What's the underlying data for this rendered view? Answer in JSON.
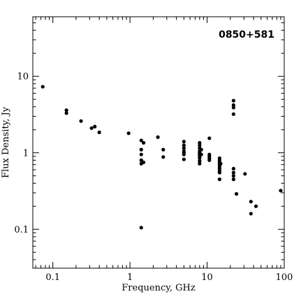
{
  "chart_data": {
    "type": "scatter",
    "title": "0850+581",
    "xlabel": "Frequency, GHz",
    "ylabel": "Flux Density, Jy",
    "x_scale": "log",
    "y_scale": "log",
    "xlim": [
      0.055,
      100
    ],
    "ylim": [
      0.031,
      60
    ],
    "x_ticks": [
      {
        "value": 0.1,
        "label": "0.1"
      },
      {
        "value": 1,
        "label": "1"
      },
      {
        "value": 10,
        "label": "10"
      },
      {
        "value": 100,
        "label": "100"
      }
    ],
    "y_ticks": [
      {
        "value": 0.1,
        "label": "0.1"
      },
      {
        "value": 1,
        "label": "1"
      },
      {
        "value": 10,
        "label": "10"
      }
    ],
    "grid": false,
    "legend": "none",
    "point_color": "#000000",
    "series": [
      {
        "points": [
          [
            0.074,
            7.3
          ],
          [
            0.15,
            3.6
          ],
          [
            0.15,
            3.3
          ],
          [
            0.232,
            2.6
          ],
          [
            0.318,
            2.1
          ],
          [
            0.35,
            2.2
          ],
          [
            0.4,
            1.85
          ],
          [
            0.96,
            1.8
          ],
          [
            1.4,
            1.45
          ],
          [
            1.4,
            1.1
          ],
          [
            1.4,
            0.95
          ],
          [
            1.4,
            0.8
          ],
          [
            1.4,
            0.72
          ],
          [
            1.4,
            0.105
          ],
          [
            1.5,
            1.35
          ],
          [
            1.5,
            0.75
          ],
          [
            2.3,
            1.6
          ],
          [
            2.7,
            1.1
          ],
          [
            2.7,
            0.88
          ],
          [
            5.0,
            1.4
          ],
          [
            5.0,
            1.25
          ],
          [
            5.0,
            1.15
          ],
          [
            5.0,
            1.05
          ],
          [
            5.0,
            1.0
          ],
          [
            5.0,
            0.95
          ],
          [
            5.0,
            0.82
          ],
          [
            8.0,
            1.35
          ],
          [
            8.0,
            1.25
          ],
          [
            8.0,
            1.15
          ],
          [
            8.0,
            1.05
          ],
          [
            8.0,
            1.0
          ],
          [
            8.0,
            0.95
          ],
          [
            8.0,
            0.9
          ],
          [
            8.0,
            0.85
          ],
          [
            8.0,
            0.78
          ],
          [
            8.0,
            0.72
          ],
          [
            8.4,
            1.1
          ],
          [
            8.4,
            0.95
          ],
          [
            10.7,
            1.55
          ],
          [
            10.7,
            0.95
          ],
          [
            10.7,
            0.9
          ],
          [
            10.7,
            0.85
          ],
          [
            10.7,
            0.8
          ],
          [
            14.5,
            0.85
          ],
          [
            14.5,
            0.8
          ],
          [
            14.5,
            0.75
          ],
          [
            14.5,
            0.7
          ],
          [
            14.5,
            0.66
          ],
          [
            14.5,
            0.62
          ],
          [
            14.5,
            0.58
          ],
          [
            14.5,
            0.55
          ],
          [
            14.5,
            0.45
          ],
          [
            15.0,
            0.72
          ],
          [
            22.0,
            4.8
          ],
          [
            22.0,
            4.2
          ],
          [
            22.0,
            3.9
          ],
          [
            22.0,
            3.2
          ],
          [
            22.0,
            0.62
          ],
          [
            22.0,
            0.55
          ],
          [
            22.0,
            0.5
          ],
          [
            22.0,
            0.45
          ],
          [
            24.0,
            0.29
          ],
          [
            31.0,
            0.53
          ],
          [
            37.0,
            0.23
          ],
          [
            37.0,
            0.16
          ],
          [
            43.0,
            0.2
          ],
          [
            90.0,
            0.32
          ]
        ]
      }
    ]
  }
}
